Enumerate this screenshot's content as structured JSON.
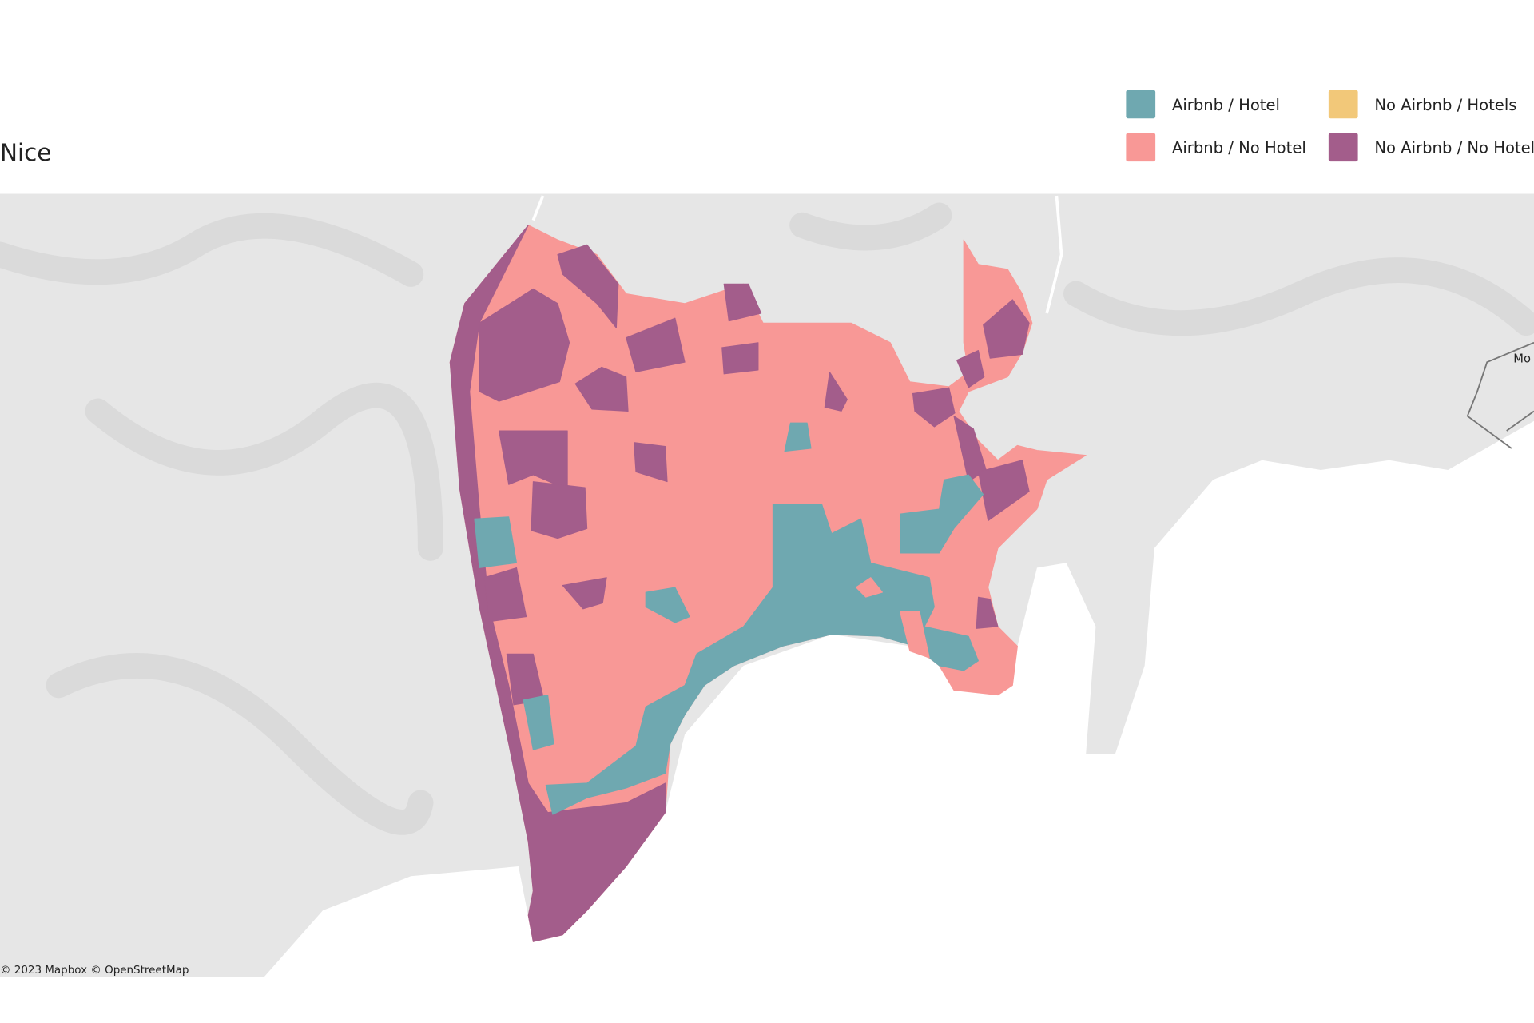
{
  "title": "Nice",
  "legend": [
    {
      "label": "Airbnb / Hotel",
      "color": "#6fa8b0"
    },
    {
      "label": "No Airbnb / Hotels",
      "color": "#f2c879"
    },
    {
      "label": "Airbnb / No Hotel",
      "color": "#f89896"
    },
    {
      "label": "No Airbnb / No Hotel",
      "color": "#a35d8b"
    }
  ],
  "map_labels": [
    "Mo"
  ],
  "attribution": "© 2023 Mapbox © OpenStreetMap"
}
